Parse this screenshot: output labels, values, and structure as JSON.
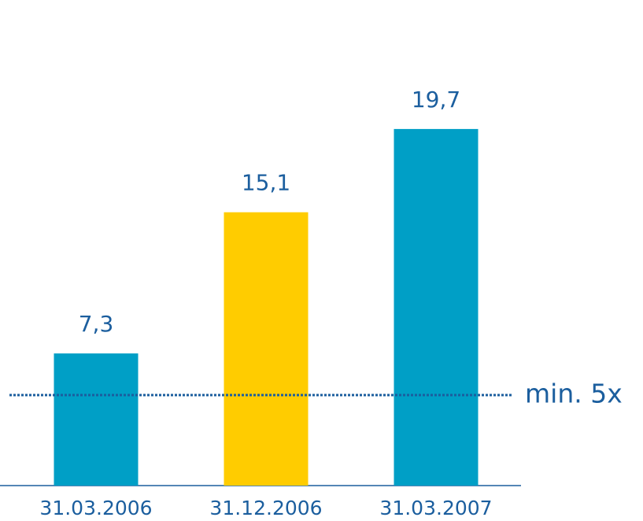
{
  "chart_data": {
    "type": "bar",
    "categories": [
      "31.03.2006",
      "31.12.2006",
      "31.03.2007"
    ],
    "values": [
      7.3,
      15.1,
      19.7
    ],
    "value_labels": [
      "7,3",
      "15,1",
      "19,7"
    ],
    "colors": [
      "#009fc6",
      "#ffcc00",
      "#009fc6"
    ],
    "ylim": [
      0,
      25
    ],
    "reference_line": {
      "value": 5,
      "label": "min. 5x"
    }
  }
}
